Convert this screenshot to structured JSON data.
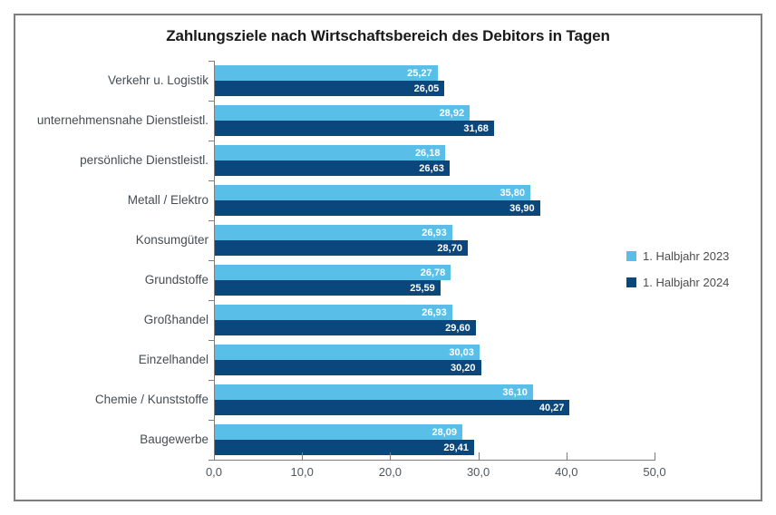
{
  "title": "Zahlungsziele nach Wirtschaftsbereich des Debitors in Tagen",
  "chart_data": {
    "type": "bar",
    "orientation": "horizontal",
    "title": "Zahlungsziele nach Wirtschaftsbereich des Debitors in Tagen",
    "categories": [
      "Verkehr u. Logistik",
      "unternehmensnahe Dienstleistl.",
      "persönliche Dienstleistl.",
      "Metall / Elektro",
      "Konsumgüter",
      "Grundstoffe",
      "Großhandel",
      "Einzelhandel",
      "Chemie / Kunststoffe",
      "Baugewerbe"
    ],
    "series": [
      {
        "name": "1. Halbjahr 2023",
        "color": "#59bfe9",
        "values": [
          25.27,
          28.92,
          26.18,
          35.8,
          26.93,
          26.78,
          26.93,
          30.03,
          36.1,
          28.09
        ]
      },
      {
        "name": "1. Halbjahr 2024",
        "color": "#0a477d",
        "values": [
          26.05,
          31.68,
          26.63,
          36.9,
          28.7,
          25.59,
          29.6,
          30.2,
          40.27,
          29.41
        ]
      }
    ],
    "xlim": [
      0,
      50
    ],
    "x_tick_labels": [
      "0,0",
      "10,0",
      "20,0",
      "30,0",
      "40,0",
      "50,0"
    ],
    "value_label_format": "comma-decimal-2",
    "value_label_color": "#ffffff",
    "grid": false,
    "legend_position": "right",
    "axis_color": "#7d7d7d"
  }
}
